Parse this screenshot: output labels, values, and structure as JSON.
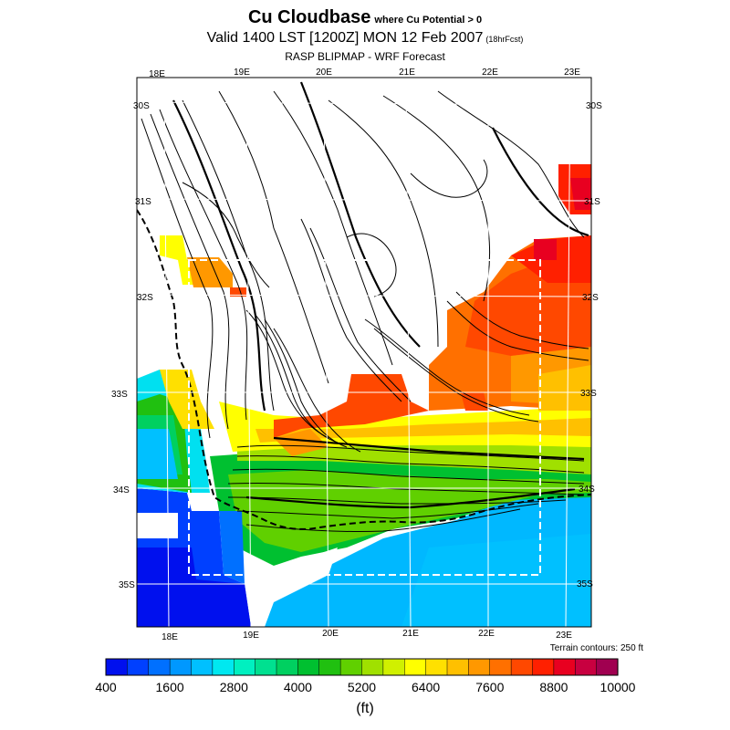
{
  "header": {
    "title": "Cu Cloudbase",
    "condition": "where Cu Potential > 0",
    "valid": "Valid 1400 LST [1200Z] MON 12 Feb 2007",
    "forecast": "(18hrFcst)",
    "source": "RASP BLIPMAP - WRF Forecast"
  },
  "axes": {
    "lon_top": [
      "18E",
      "19E",
      "20E",
      "21E",
      "22E",
      "23E"
    ],
    "lon_bottom": [
      "18E",
      "19E",
      "20E",
      "21E",
      "22E",
      "23E"
    ],
    "lat_left": [
      "30S",
      "31S",
      "32S",
      "33S",
      "34S",
      "35S"
    ],
    "lat_right": [
      "30S",
      "31S",
      "32S",
      "33S",
      "34S",
      "35S"
    ]
  },
  "terrain_note": "Terrain contours: 250 ft",
  "colorbar": {
    "labels": [
      "400",
      "1600",
      "2800",
      "4000",
      "5200",
      "6400",
      "7600",
      "8800",
      "10000"
    ],
    "unit": "(ft)",
    "min": 400,
    "max": 10000,
    "step": 400,
    "colors": [
      "#0010ee",
      "#0040ff",
      "#0070ff",
      "#0098ff",
      "#00c0ff",
      "#00e8f0",
      "#00f0c0",
      "#00e090",
      "#00d060",
      "#00c030",
      "#20c010",
      "#60d000",
      "#a0e000",
      "#d0f000",
      "#ffff00",
      "#ffe000",
      "#ffc000",
      "#ff9800",
      "#ff7000",
      "#ff4800",
      "#ff2000",
      "#e80020",
      "#c80040",
      "#a00050"
    ]
  }
}
